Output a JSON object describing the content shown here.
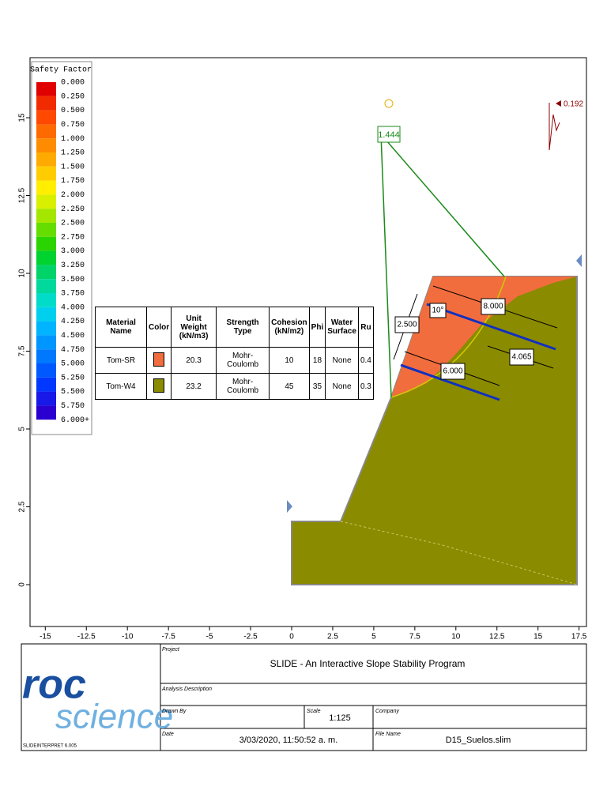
{
  "legend": {
    "title": "Safety Factor",
    "labels": [
      "0.000",
      "0.250",
      "0.500",
      "0.750",
      "1.000",
      "1.250",
      "1.500",
      "1.750",
      "2.000",
      "2.250",
      "2.500",
      "2.750",
      "3.000",
      "3.250",
      "3.500",
      "3.750",
      "4.000",
      "4.250",
      "4.500",
      "4.750",
      "5.000",
      "5.250",
      "5.500",
      "5.750",
      "6.000+"
    ],
    "colors": [
      "#e00000",
      "#f22a00",
      "#ff4800",
      "#ff6a00",
      "#ff8c00",
      "#ffaa00",
      "#ffcc00",
      "#ffee00",
      "#d8f000",
      "#a4e600",
      "#66dd00",
      "#2ad400",
      "#00d230",
      "#00d468",
      "#00d89c",
      "#00dcc8",
      "#00d0ee",
      "#00b4ff",
      "#0096ff",
      "#0078ff",
      "#0058ff",
      "#0038ff",
      "#1818e8",
      "#2a00d0"
    ]
  },
  "axes": {
    "xticks": [
      -15,
      -12.5,
      -10,
      -7.5,
      -5,
      -2.5,
      0,
      2.5,
      5,
      7.5,
      10,
      12.5,
      15,
      17.5
    ],
    "yticks": [
      0,
      2.5,
      5,
      7.5,
      10,
      12.5,
      15
    ]
  },
  "annotations": {
    "safety_factor": "1.444",
    "seismic": "0.192",
    "angle": "10°",
    "spacing": "2.500",
    "anchor_length_1": "8.000",
    "bond_length": "4.065",
    "anchor_length_2": "6.000"
  },
  "table": {
    "headers": [
      "Material Name",
      "Color",
      "Unit Weight (kN/m3)",
      "Strength Type",
      "Cohesion (kN/m2)",
      "Phi",
      "Water Surface",
      "Ru"
    ],
    "rows": [
      {
        "name": "Tom-SR",
        "color": "#f26d3d",
        "unit_weight": 20.3,
        "strength_type": "Mohr-Coulomb",
        "cohesion": 10,
        "phi": 18,
        "water": "None",
        "ru": 0.4
      },
      {
        "name": "Tom-W4",
        "color": "#8b8b00",
        "unit_weight": 23.2,
        "strength_type": "Mohr-Coulomb",
        "cohesion": 45,
        "phi": 35,
        "water": "None",
        "ru": 0.3
      }
    ]
  },
  "title_block": {
    "logo_1": "roc",
    "logo_2": "science",
    "version": "SLIDEINTERPRET 6.005",
    "project_label": "Project",
    "project": "SLIDE - An Interactive Slope Stability Program",
    "analysis_label": "Analysis Description",
    "drawn_label": "Drawn By",
    "scale_label": "Scale",
    "scale": "1:125",
    "company_label": "Company",
    "date_label": "Date",
    "date": "3/03/2020, 11:50:52 a. m.",
    "file_label": "File Name",
    "file": "D15_Suelos.slim"
  }
}
